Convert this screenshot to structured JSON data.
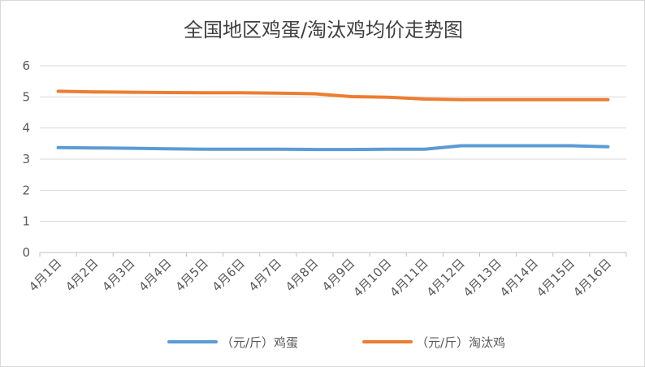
{
  "chart_data": {
    "type": "line",
    "title": "全国地区鸡蛋/淘汰鸡均价走势图",
    "categories": [
      "4月1日",
      "4月2日",
      "4月3日",
      "4月4日",
      "4月5日",
      "4月6日",
      "4月7日",
      "4月8日",
      "4月9日",
      "4月10日",
      "4月11日",
      "4月12日",
      "4月13日",
      "4月14日",
      "4月15日",
      "4月16日"
    ],
    "ylim": [
      0,
      6
    ],
    "yticks": [
      "0",
      "1",
      "2",
      "3",
      "4",
      "5",
      "6"
    ],
    "grid": true,
    "legend_position": "bottom",
    "series": [
      {
        "name": "（元/斤）鸡蛋",
        "color": "#5b9bd5",
        "values": [
          3.37,
          3.36,
          3.35,
          3.33,
          3.32,
          3.32,
          3.32,
          3.31,
          3.31,
          3.32,
          3.32,
          3.43,
          3.43,
          3.43,
          3.43,
          3.4
        ]
      },
      {
        "name": "（元/斤）淘汰鸡",
        "color": "#ed7d31",
        "values": [
          5.18,
          5.16,
          5.15,
          5.14,
          5.13,
          5.13,
          5.12,
          5.1,
          5.01,
          4.99,
          4.93,
          4.91,
          4.91,
          4.91,
          4.91,
          4.91
        ]
      }
    ]
  }
}
